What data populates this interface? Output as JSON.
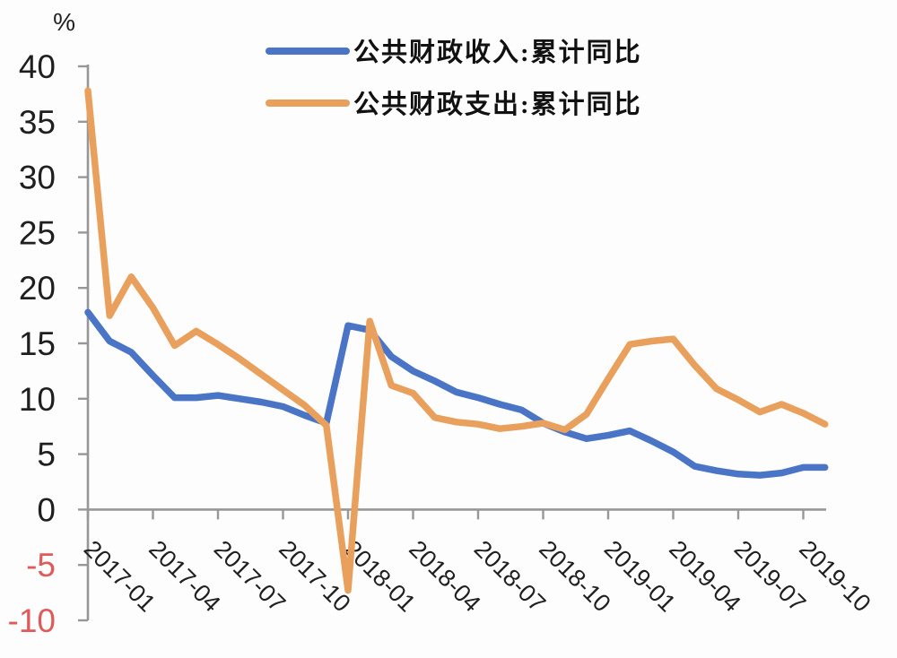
{
  "page": {
    "background": "#fdfdfd"
  },
  "chart_data": {
    "type": "line",
    "title": "",
    "unit_label": "%",
    "x": [
      "2017-01",
      "2017-02",
      "2017-03",
      "2017-04",
      "2017-05",
      "2017-06",
      "2017-07",
      "2017-08",
      "2017-09",
      "2017-10",
      "2017-11",
      "2017-12",
      "2018-01",
      "2018-02",
      "2018-03",
      "2018-04",
      "2018-05",
      "2018-06",
      "2018-07",
      "2018-08",
      "2018-09",
      "2018-10",
      "2018-11",
      "2018-12",
      "2019-01",
      "2019-02",
      "2019-03",
      "2019-04",
      "2019-05",
      "2019-06",
      "2019-07",
      "2019-08",
      "2019-09",
      "2019-10",
      "2019-11"
    ],
    "x_tick_every": 3,
    "x_tick_labels": [
      "2017-01",
      "2017-04",
      "2017-07",
      "2017-10",
      "2018-01",
      "2018-04",
      "2018-07",
      "2018-10",
      "2019-01",
      "2019-04",
      "2019-07",
      "2019-10"
    ],
    "y_ticks": [
      40,
      35,
      30,
      25,
      20,
      15,
      10,
      5,
      0,
      -5,
      -10
    ],
    "ylim": [
      -10,
      40
    ],
    "grid": false,
    "legend_position": "top-center",
    "colors": {
      "axis": "#979797",
      "tick_label": "#1f1f1f",
      "negative_tick": "#e05a5a",
      "legend_text": "#111111"
    },
    "series": [
      {
        "name": "公共财政收入:累计同比",
        "color": "#4a74c6",
        "values": [
          17.8,
          15.2,
          14.2,
          12.1,
          10.1,
          10.1,
          10.3,
          10.0,
          9.7,
          9.3,
          8.5,
          7.8,
          16.6,
          16.2,
          13.8,
          12.5,
          11.6,
          10.6,
          10.1,
          9.5,
          9.0,
          7.8,
          7.0,
          6.4,
          6.7,
          7.1,
          6.2,
          5.2,
          3.9,
          3.5,
          3.2,
          3.1,
          3.3,
          3.8,
          3.8
        ]
      },
      {
        "name": "公共财政支出:累计同比",
        "color": "#e8a05c",
        "values": [
          37.8,
          17.5,
          21.0,
          18.2,
          14.8,
          16.1,
          14.9,
          13.6,
          12.2,
          10.8,
          9.4,
          7.6,
          -7.3,
          17.0,
          11.2,
          10.5,
          8.3,
          7.9,
          7.7,
          7.3,
          7.5,
          7.8,
          7.2,
          8.6,
          11.8,
          14.9,
          15.2,
          15.4,
          13.0,
          10.9,
          9.9,
          8.8,
          9.5,
          8.7,
          7.7
        ]
      }
    ]
  }
}
